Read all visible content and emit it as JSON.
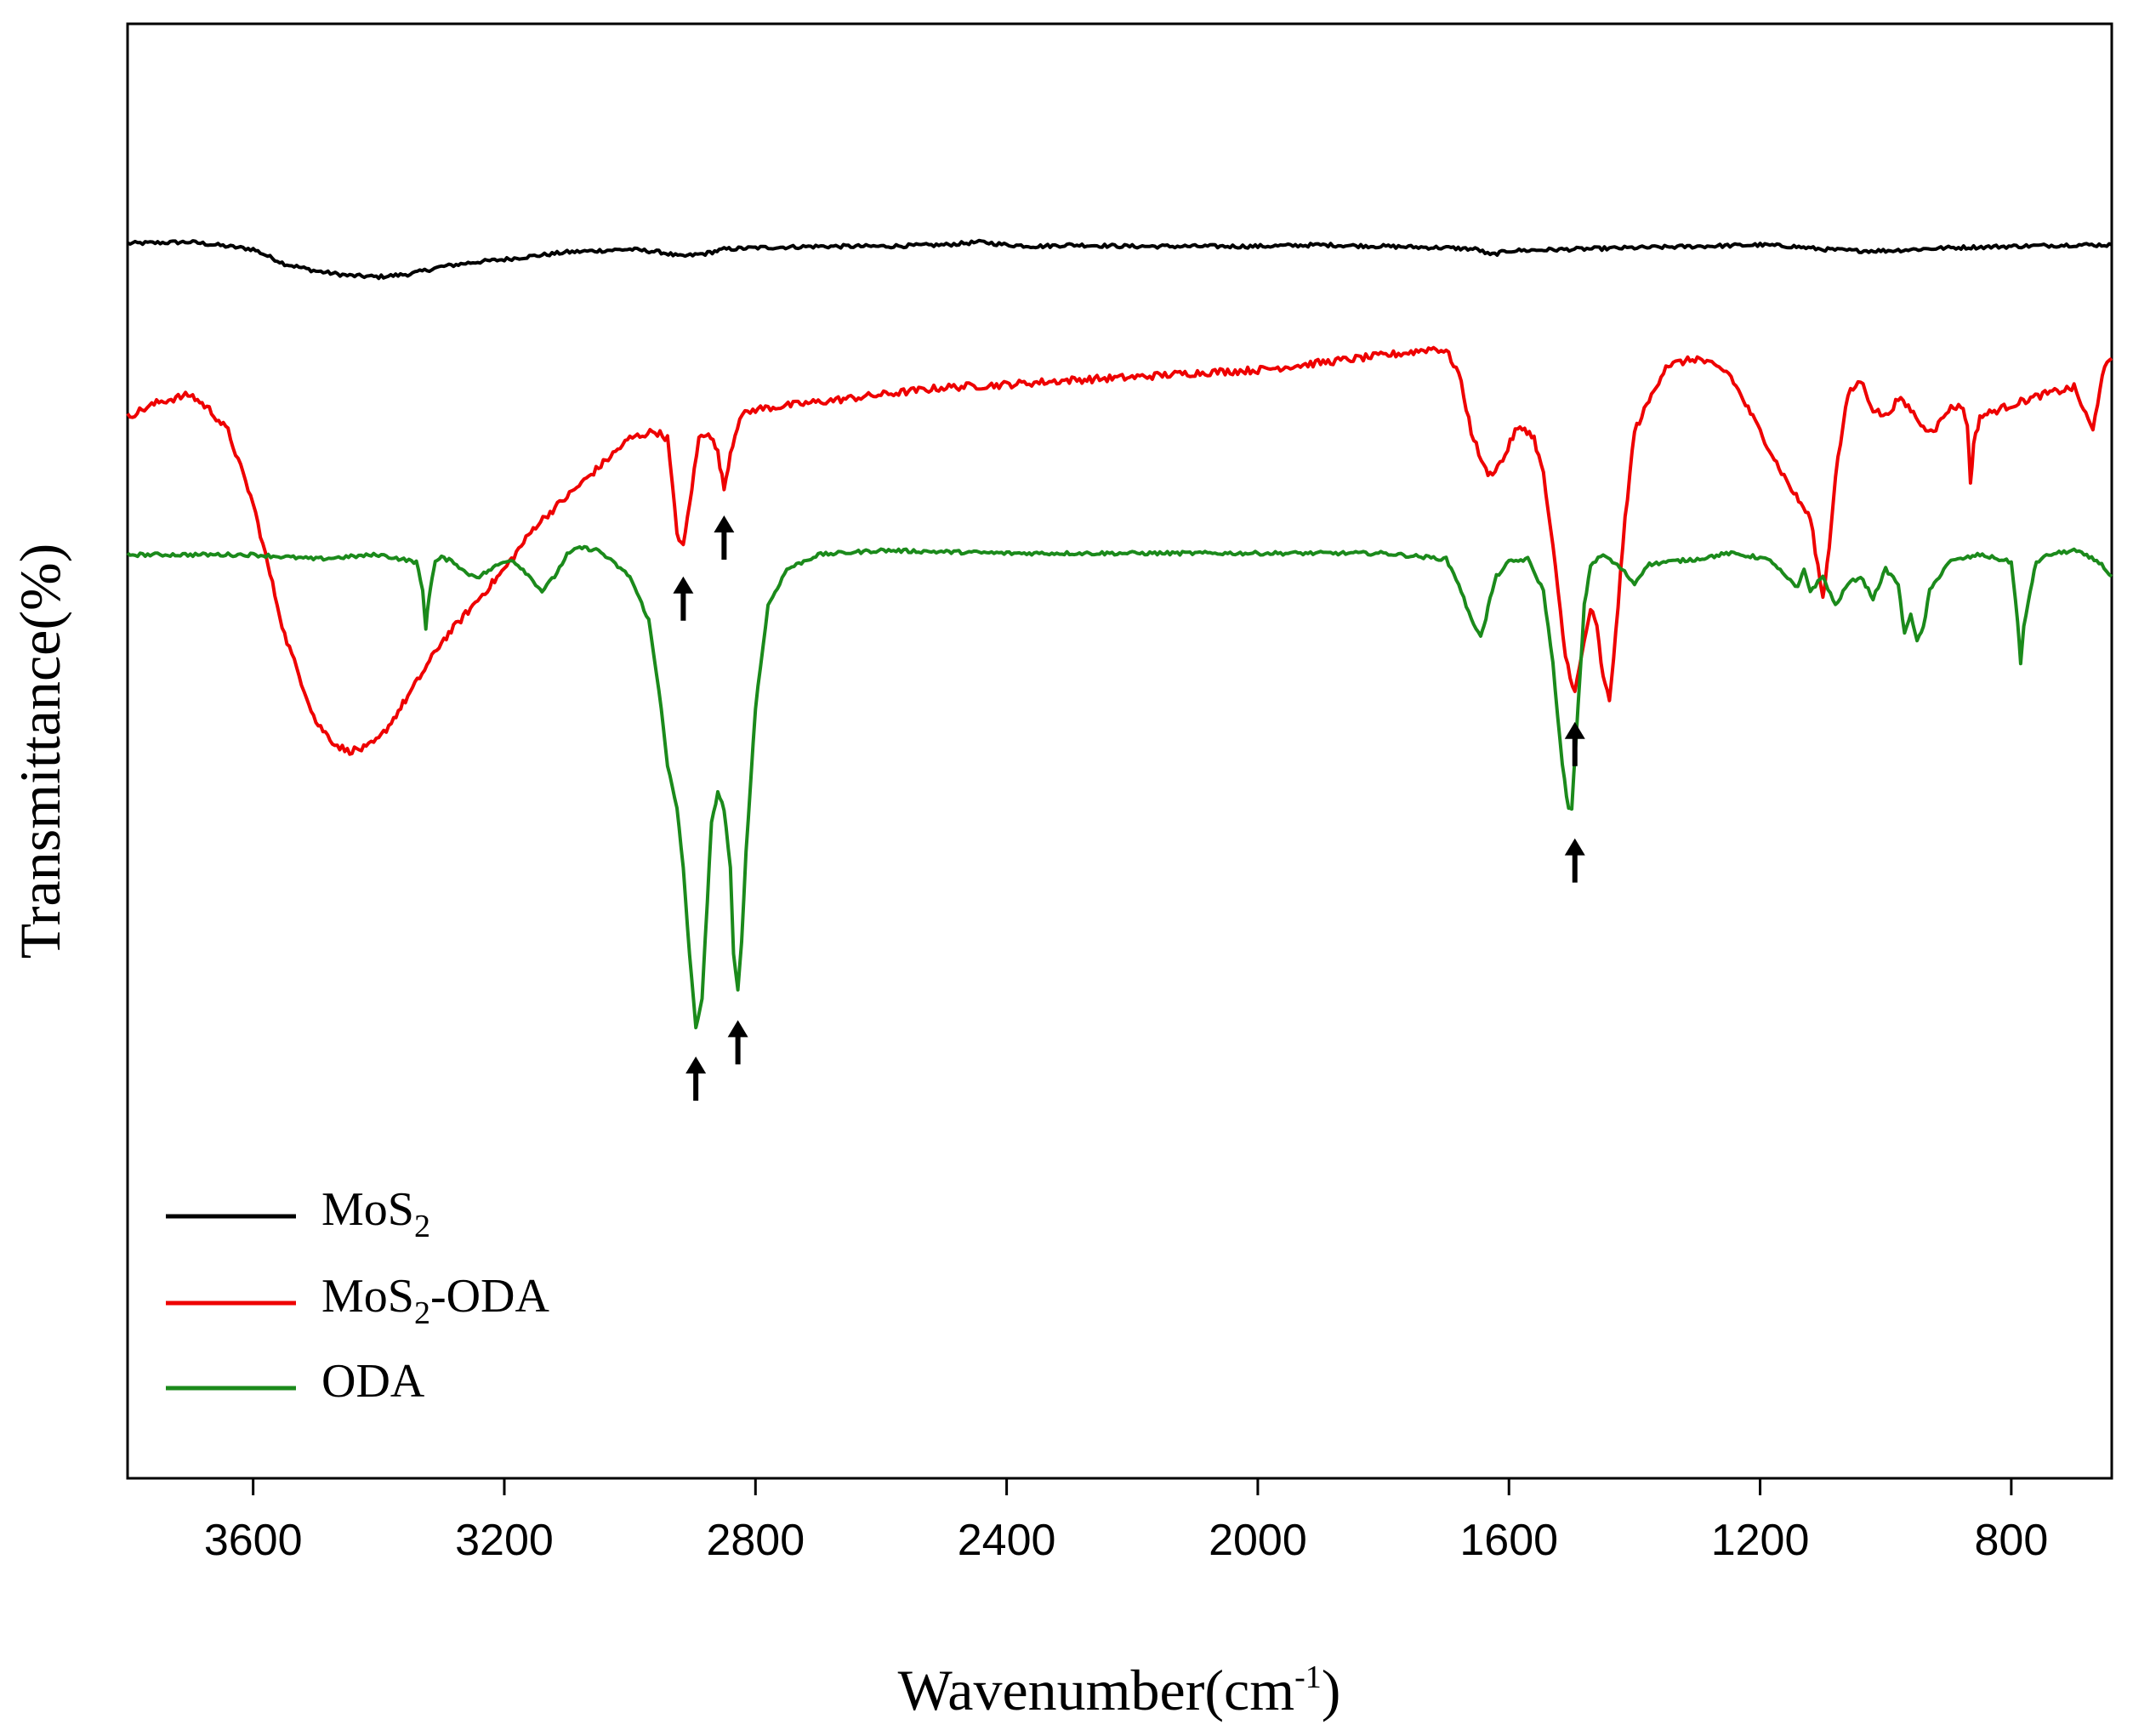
{
  "chart_data": {
    "type": "line",
    "title": "",
    "xlabel_main": "Wavenumber(cm",
    "xlabel_sup": "-1",
    "xlabel_close": ")",
    "ylabel": "Transmittance(%)",
    "xlim": [
      3800,
      640
    ],
    "ylim": [
      0,
      10
    ],
    "x_reversed": true,
    "x_ticks": [
      3600,
      3200,
      2800,
      2400,
      2000,
      1600,
      1200,
      800
    ],
    "x_tick_labels": [
      "3600",
      "3200",
      "2800",
      "2400",
      "2000",
      "1600",
      "1200",
      "800"
    ],
    "grid": false,
    "legend_position": "bottom-left",
    "series": [
      {
        "name": "MoS2",
        "label_main": "MoS",
        "label_sub": "2",
        "label_suffix": "",
        "color": "#000000",
        "x": [
          3800,
          3700,
          3600,
          3550,
          3500,
          3450,
          3400,
          3350,
          3300,
          3250,
          3200,
          3100,
          3000,
          2950,
          2920,
          2900,
          2880,
          2850,
          2800,
          2700,
          2600,
          2500,
          2440,
          2400,
          2350,
          2300,
          2200,
          2100,
          2000,
          1900,
          1800,
          1700,
          1650,
          1630,
          1600,
          1500,
          1400,
          1300,
          1200,
          1150,
          1100,
          1050,
          1000,
          900,
          800,
          700,
          640
        ],
        "y": [
          8.49,
          8.5,
          8.45,
          8.35,
          8.3,
          8.27,
          8.26,
          8.28,
          8.33,
          8.36,
          8.38,
          8.43,
          8.45,
          8.43,
          8.4,
          8.41,
          8.42,
          8.45,
          8.46,
          8.47,
          8.47,
          8.48,
          8.5,
          8.48,
          8.47,
          8.48,
          8.47,
          8.47,
          8.47,
          8.48,
          8.47,
          8.46,
          8.45,
          8.41,
          8.44,
          8.45,
          8.46,
          8.47,
          8.48,
          8.47,
          8.45,
          8.44,
          8.44,
          8.46,
          8.47,
          8.48,
          8.48
        ]
      },
      {
        "name": "MoS2-ODA",
        "label_main": "MoS",
        "label_sub": "2",
        "label_suffix": "-ODA",
        "color": "#ee0000",
        "x": [
          3800,
          3750,
          3700,
          3670,
          3640,
          3600,
          3550,
          3500,
          3470,
          3450,
          3420,
          3400,
          3380,
          3350,
          3300,
          3250,
          3200,
          3150,
          3100,
          3050,
          3000,
          2960,
          2940,
          2925,
          2915,
          2905,
          2890,
          2875,
          2860,
          2850,
          2840,
          2825,
          2800,
          2700,
          2600,
          2500,
          2400,
          2300,
          2200,
          2100,
          2000,
          1900,
          1800,
          1760,
          1720,
          1700,
          1680,
          1660,
          1640,
          1630,
          1610,
          1590,
          1575,
          1560,
          1545,
          1530,
          1510,
          1495,
          1480,
          1470,
          1460,
          1450,
          1440,
          1430,
          1415,
          1400,
          1350,
          1300,
          1250,
          1200,
          1170,
          1150,
          1120,
          1100,
          1090,
          1080,
          1060,
          1040,
          1020,
          1000,
          980,
          960,
          940,
          920,
          900,
          880,
          870,
          865,
          860,
          850,
          800,
          750,
          700,
          670,
          655,
          640
        ],
        "y": [
          7.3,
          7.4,
          7.45,
          7.35,
          7.2,
          6.7,
          5.8,
          5.2,
          5.05,
          5.0,
          5.02,
          5.08,
          5.2,
          5.4,
          5.75,
          6.0,
          6.25,
          6.55,
          6.75,
          6.95,
          7.15,
          7.2,
          7.15,
          6.5,
          6.4,
          6.7,
          7.15,
          7.2,
          7.05,
          6.8,
          7.05,
          7.3,
          7.35,
          7.4,
          7.45,
          7.5,
          7.52,
          7.55,
          7.57,
          7.6,
          7.62,
          7.67,
          7.72,
          7.74,
          7.77,
          7.75,
          7.6,
          7.2,
          6.95,
          6.9,
          7.0,
          7.2,
          7.22,
          7.15,
          6.9,
          6.4,
          5.65,
          5.4,
          5.75,
          5.98,
          5.85,
          5.5,
          5.35,
          5.8,
          6.6,
          7.2,
          7.65,
          7.7,
          7.6,
          7.2,
          6.95,
          6.8,
          6.6,
          6.05,
          6.4,
          6.9,
          7.45,
          7.55,
          7.35,
          7.3,
          7.42,
          7.35,
          7.22,
          7.22,
          7.35,
          7.38,
          7.25,
          6.85,
          7.1,
          7.3,
          7.38,
          7.45,
          7.5,
          7.2,
          7.6,
          7.7
        ]
      },
      {
        "name": "ODA",
        "label_main": "ODA",
        "label_sub": "",
        "label_suffix": "",
        "color": "#1b8a1b",
        "x": [
          3800,
          3600,
          3500,
          3400,
          3340,
          3330,
          3325,
          3320,
          3315,
          3310,
          3300,
          3280,
          3260,
          3240,
          3210,
          3190,
          3170,
          3150,
          3140,
          3120,
          3100,
          3080,
          3050,
          3000,
          2970,
          2950,
          2940,
          2925,
          2915,
          2905,
          2895,
          2885,
          2880,
          2870,
          2860,
          2850,
          2840,
          2835,
          2828,
          2822,
          2815,
          2800,
          2780,
          2750,
          2700,
          2600,
          2500,
          2400,
          2200,
          2000,
          1800,
          1700,
          1680,
          1660,
          1645,
          1640,
          1630,
          1620,
          1600,
          1570,
          1545,
          1530,
          1515,
          1505,
          1500,
          1490,
          1480,
          1470,
          1450,
          1420,
          1400,
          1380,
          1350,
          1300,
          1250,
          1200,
          1180,
          1160,
          1140,
          1130,
          1120,
          1100,
          1080,
          1060,
          1040,
          1020,
          1000,
          980,
          970,
          960,
          950,
          940,
          930,
          900,
          850,
          800,
          790,
          785,
          780,
          770,
          760,
          740,
          700,
          660,
          640
        ],
        "y": [
          6.35,
          6.35,
          6.32,
          6.35,
          6.3,
          6.1,
          5.85,
          6.05,
          6.2,
          6.3,
          6.33,
          6.3,
          6.22,
          6.2,
          6.28,
          6.32,
          6.25,
          6.15,
          6.1,
          6.2,
          6.35,
          6.4,
          6.38,
          6.2,
          5.9,
          5.3,
          4.9,
          4.6,
          4.2,
          3.6,
          3.1,
          3.3,
          3.7,
          4.5,
          4.72,
          4.6,
          4.2,
          3.6,
          3.35,
          3.7,
          4.3,
          5.3,
          6.0,
          6.25,
          6.35,
          6.38,
          6.37,
          6.36,
          6.36,
          6.36,
          6.36,
          6.32,
          6.15,
          5.9,
          5.8,
          5.85,
          6.05,
          6.2,
          6.3,
          6.32,
          6.1,
          5.6,
          4.9,
          4.6,
          4.6,
          5.3,
          6.0,
          6.28,
          6.35,
          6.25,
          6.15,
          6.28,
          6.3,
          6.32,
          6.36,
          6.33,
          6.3,
          6.2,
          6.12,
          6.25,
          6.1,
          6.2,
          6.0,
          6.15,
          6.2,
          6.05,
          6.25,
          6.15,
          5.8,
          5.95,
          5.75,
          5.85,
          6.1,
          6.3,
          6.35,
          6.3,
          5.9,
          5.6,
          5.85,
          6.1,
          6.3,
          6.35,
          6.38,
          6.3,
          6.2
        ]
      }
    ],
    "annotations": [
      {
        "type": "arrow",
        "x": 2915,
        "y": 6.2,
        "target_series": "MoS2-ODA"
      },
      {
        "type": "arrow",
        "x": 2850,
        "y": 6.62,
        "target_series": "MoS2-ODA"
      },
      {
        "type": "arrow",
        "x": 1495,
        "y": 5.2,
        "target_series": "MoS2-ODA"
      },
      {
        "type": "arrow",
        "x": 2895,
        "y": 2.9,
        "target_series": "ODA"
      },
      {
        "type": "arrow",
        "x": 2828,
        "y": 3.15,
        "target_series": "ODA"
      },
      {
        "type": "arrow",
        "x": 1495,
        "y": 4.4,
        "target_series": "ODA"
      }
    ]
  }
}
